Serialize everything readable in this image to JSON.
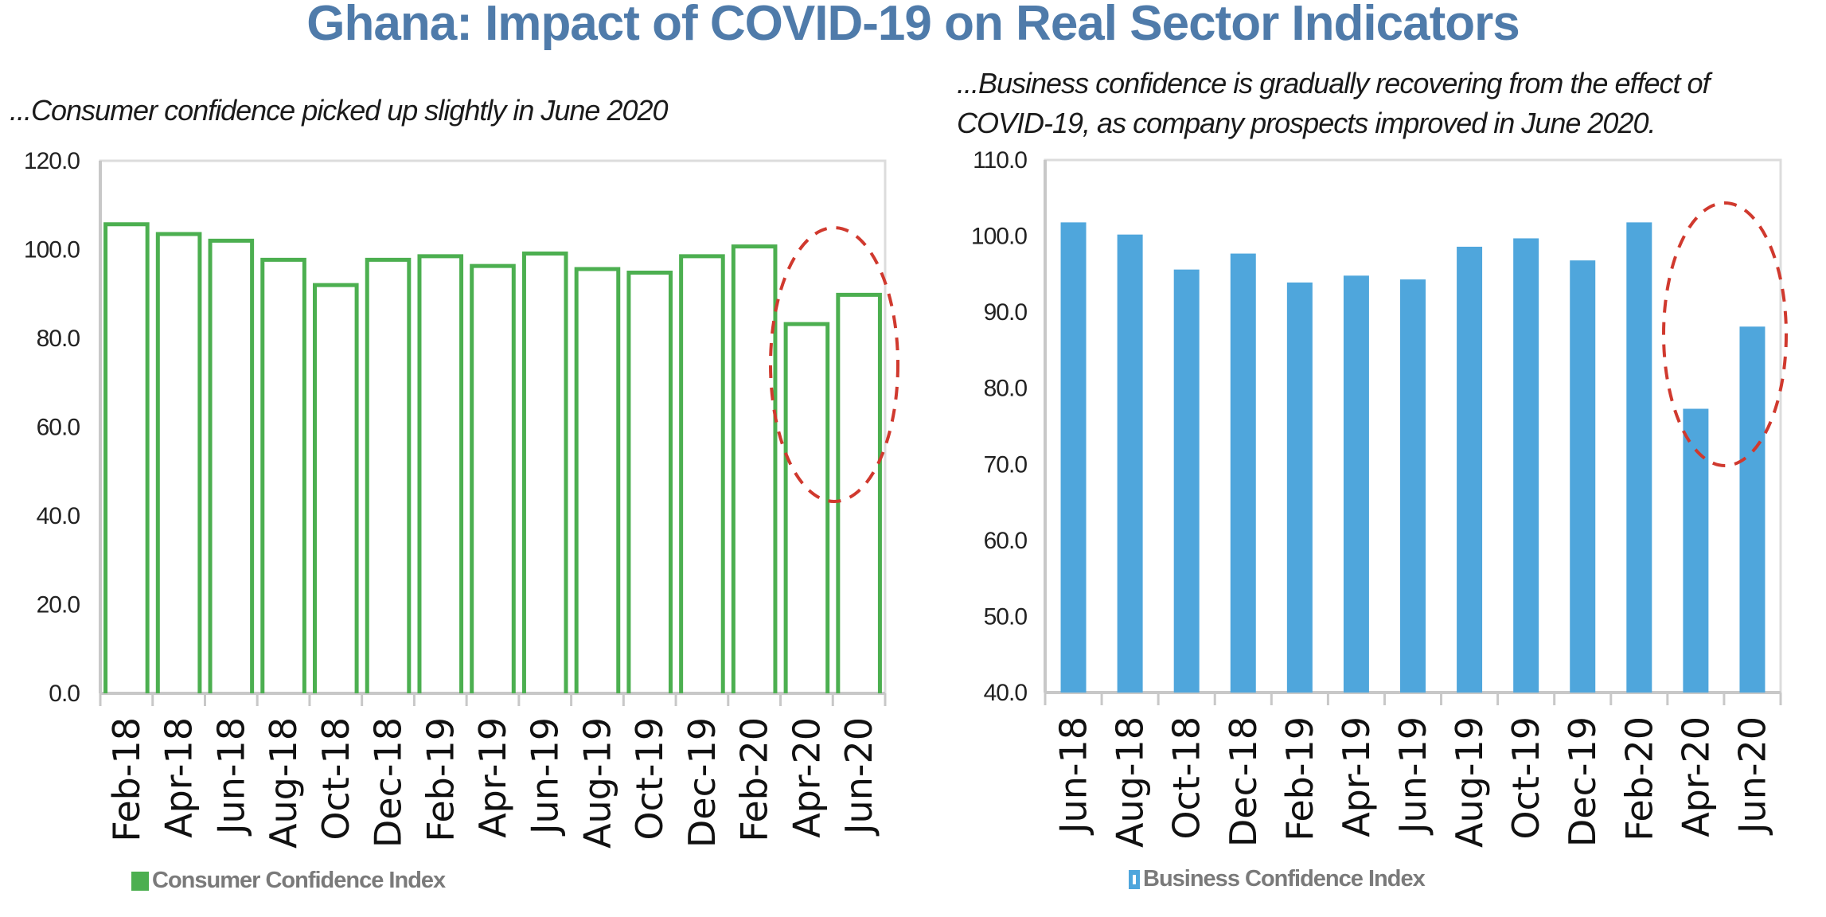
{
  "page": {
    "title": "Ghana: Impact of COVID-19 on Real Sector Indicators",
    "left_subtitle": "...Consumer confidence picked up slightly in June 2020",
    "right_subtitle_line1": "...Business confidence is gradually recovering from the effect of",
    "right_subtitle_line2": "COVID-19, as company prospects  improved in June 2020."
  },
  "colors": {
    "title": "#4F7BAA",
    "consumer_bar_outline": "#4CAF50",
    "business_bar_fill": "#4FA6DC",
    "highlight_ellipse": "#D0392E",
    "axis": "#C8C8C8"
  },
  "chart_data": [
    {
      "type": "bar",
      "style": "outline",
      "title": "...Consumer confidence picked up slightly in June 2020",
      "xlabel": "",
      "ylabel": "",
      "categories": [
        "Feb-18",
        "Apr-18",
        "Jun-18",
        "Aug-18",
        "Oct-18",
        "Dec-18",
        "Feb-19",
        "Apr-19",
        "Jun-19",
        "Aug-19",
        "Oct-19",
        "Dec-19",
        "Feb-20",
        "Apr-20",
        "Jun-20"
      ],
      "series": [
        {
          "name": "Consumer Confidence Index",
          "values": [
            105.7,
            103.5,
            102.0,
            97.7,
            92.0,
            97.7,
            98.5,
            96.3,
            99.1,
            95.6,
            94.8,
            98.5,
            100.7,
            83.2,
            89.8
          ]
        }
      ],
      "ylim": [
        0,
        120
      ],
      "yticks": [
        "0.0",
        "20.0",
        "40.0",
        "60.0",
        "80.0",
        "100.0",
        "120.0"
      ],
      "ytick_values": [
        0,
        20,
        40,
        60,
        80,
        100,
        120
      ],
      "legend": "bottom-left",
      "grid": false,
      "annotation": "dashed red ellipse highlighting Apr-20 and Jun-20"
    },
    {
      "type": "bar",
      "style": "filled",
      "title": "...Business confidence is gradually recovering from the effect of COVID-19, as company prospects  improved in June 2020.",
      "xlabel": "",
      "ylabel": "",
      "categories": [
        "Jun-18",
        "Aug-18",
        "Oct-18",
        "Dec-18",
        "Feb-19",
        "Apr-19",
        "Jun-19",
        "Aug-19",
        "Oct-19",
        "Dec-19",
        "Feb-20",
        "Apr-20",
        "Jun-20"
      ],
      "series": [
        {
          "name": "Business Confidence Index",
          "values": [
            101.8,
            100.2,
            95.6,
            97.7,
            93.9,
            94.8,
            94.3,
            98.6,
            99.7,
            96.8,
            101.8,
            77.3,
            88.1
          ]
        }
      ],
      "ylim": [
        40,
        110
      ],
      "yticks": [
        "40.0",
        "50.0",
        "60.0",
        "70.0",
        "80.0",
        "90.0",
        "100.0",
        "110.0"
      ],
      "ytick_values": [
        40,
        50,
        60,
        70,
        80,
        90,
        100,
        110
      ],
      "legend": "bottom-left",
      "grid": false,
      "annotation": "dashed red ellipse highlighting Apr-20 and Jun-20"
    }
  ]
}
